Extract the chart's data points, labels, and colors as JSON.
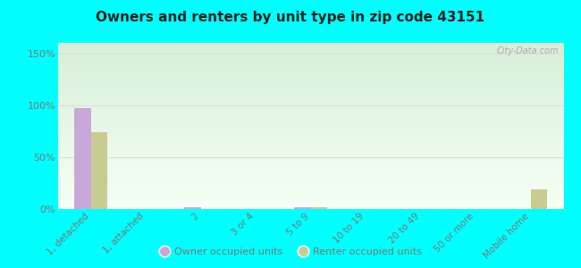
{
  "title": "Owners and renters by unit type in zip code 43151",
  "categories": [
    "1, detached",
    "1, attached",
    "2",
    "3 or 4",
    "5 to 9",
    "10 to 19",
    "20 to 49",
    "50 or more",
    "Mobile home"
  ],
  "owner_values": [
    97,
    0,
    2,
    0,
    2,
    0,
    0,
    0,
    0
  ],
  "renter_values": [
    74,
    0,
    0,
    0,
    2,
    0,
    0,
    0,
    19
  ],
  "owner_color": "#c8a8d8",
  "renter_color": "#c8cc90",
  "background_color": "#00ffff",
  "plot_bg_top": "#d8eed8",
  "plot_bg_bottom": "#f5fff5",
  "yticks": [
    0,
    50,
    100,
    150
  ],
  "ylim": [
    0,
    160
  ],
  "watermark": "City-Data.com",
  "legend_owner": "Owner occupied units",
  "legend_renter": "Renter occupied units",
  "title_color": "#222222",
  "tick_color": "#777777",
  "grid_color": "#dddddd"
}
